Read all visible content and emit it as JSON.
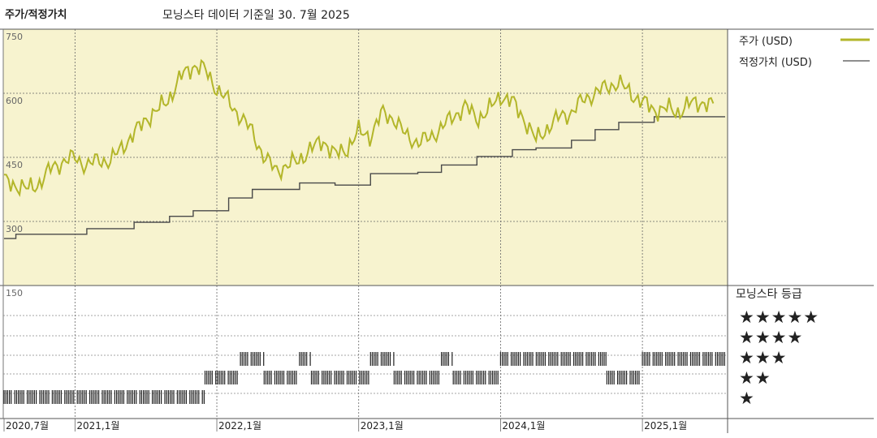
{
  "header": {
    "title": "주가/적정가치",
    "subtitle": "모닝스타 데이터 기준일 30. 7월 2025"
  },
  "legend": {
    "price_label": "주가 (USD)",
    "fair_value_label": "적정가치 (USD)",
    "price_color": "#b3b62a",
    "fair_value_color": "#4a4a4a"
  },
  "rating_panel": {
    "title": "모닝스타 등급",
    "levels": [
      "★★★★★",
      "★★★★",
      "★★★",
      "★★",
      "★"
    ]
  },
  "chart_data": {
    "type": "line",
    "title": "주가/적정가치",
    "x_ticks": [
      "2020,7월",
      "2021,1월",
      "2022,1월",
      "2023,1월",
      "2024,1월",
      "2025,1월"
    ],
    "y_ticks": [
      150,
      300,
      450,
      600,
      750
    ],
    "ylim": [
      150,
      750
    ],
    "xlim": [
      "2020-07",
      "2025-07"
    ],
    "grid": true,
    "legend_position": "right",
    "series": [
      {
        "name": "주가 (USD)",
        "color": "#b3b62a",
        "points": [
          [
            "2020-07",
            395
          ],
          [
            "2020-08",
            385
          ],
          [
            "2020-09",
            375
          ],
          [
            "2020-10",
            390
          ],
          [
            "2020-11",
            425
          ],
          [
            "2020-12",
            440
          ],
          [
            "2021-01",
            450
          ],
          [
            "2021-02",
            430
          ],
          [
            "2021-03",
            445
          ],
          [
            "2021-04",
            440
          ],
          [
            "2021-05",
            475
          ],
          [
            "2021-06",
            505
          ],
          [
            "2021-07",
            540
          ],
          [
            "2021-08",
            560
          ],
          [
            "2021-09",
            590
          ],
          [
            "2021-10",
            640
          ],
          [
            "2021-11",
            665
          ],
          [
            "2021-12",
            655
          ],
          [
            "2022-01",
            610
          ],
          [
            "2022-02",
            580
          ],
          [
            "2022-03",
            545
          ],
          [
            "2022-04",
            510
          ],
          [
            "2022-05",
            450
          ],
          [
            "2022-06",
            420
          ],
          [
            "2022-07",
            430
          ],
          [
            "2022-08",
            445
          ],
          [
            "2022-09",
            470
          ],
          [
            "2022-10",
            490
          ],
          [
            "2022-11",
            455
          ],
          [
            "2022-12",
            470
          ],
          [
            "2023-01",
            510
          ],
          [
            "2023-02",
            500
          ],
          [
            "2023-03",
            555
          ],
          [
            "2023-04",
            540
          ],
          [
            "2023-05",
            500
          ],
          [
            "2023-06",
            485
          ],
          [
            "2023-07",
            495
          ],
          [
            "2023-08",
            520
          ],
          [
            "2023-09",
            545
          ],
          [
            "2023-10",
            570
          ],
          [
            "2023-11",
            540
          ],
          [
            "2023-12",
            560
          ],
          [
            "2024-01",
            595
          ],
          [
            "2024-02",
            580
          ],
          [
            "2024-03",
            540
          ],
          [
            "2024-04",
            490
          ],
          [
            "2024-05",
            520
          ],
          [
            "2024-06",
            545
          ],
          [
            "2024-07",
            555
          ],
          [
            "2024-08",
            585
          ],
          [
            "2024-09",
            600
          ],
          [
            "2024-10",
            615
          ],
          [
            "2024-11",
            625
          ],
          [
            "2024-12",
            600
          ],
          [
            "2025-01",
            580
          ],
          [
            "2025-02",
            560
          ],
          [
            "2025-03",
            565
          ],
          [
            "2025-04",
            555
          ],
          [
            "2025-05",
            575
          ],
          [
            "2025-06",
            580
          ],
          [
            "2025-07",
            570
          ]
        ]
      },
      {
        "name": "적정가치 (USD)",
        "color": "#4a4a4a",
        "points": [
          [
            "2020-07",
            260
          ],
          [
            "2020-08",
            270
          ],
          [
            "2021-01",
            270
          ],
          [
            "2021-02",
            283
          ],
          [
            "2021-06",
            298
          ],
          [
            "2021-09",
            312
          ],
          [
            "2021-11",
            325
          ],
          [
            "2022-02",
            355
          ],
          [
            "2022-04",
            375
          ],
          [
            "2022-08",
            390
          ],
          [
            "2022-11",
            385
          ],
          [
            "2023-01",
            385
          ],
          [
            "2023-02",
            412
          ],
          [
            "2023-06",
            415
          ],
          [
            "2023-08",
            432
          ],
          [
            "2023-11",
            452
          ],
          [
            "2024-02",
            468
          ],
          [
            "2024-04",
            472
          ],
          [
            "2024-07",
            490
          ],
          [
            "2024-09",
            515
          ],
          [
            "2024-11",
            532
          ],
          [
            "2025-01",
            532
          ],
          [
            "2025-02",
            545
          ],
          [
            "2025-07",
            545
          ]
        ]
      }
    ],
    "star_rating": {
      "levels": [
        5,
        4,
        3,
        2,
        1
      ],
      "segments": [
        {
          "stars": 1,
          "from": "2020-07",
          "to": "2021-11"
        },
        {
          "stars": 2,
          "from": "2021-12",
          "to": "2022-02"
        },
        {
          "stars": 3,
          "from": "2022-03",
          "to": "2022-04"
        },
        {
          "stars": 2,
          "from": "2022-05",
          "to": "2022-07"
        },
        {
          "stars": 3,
          "from": "2022-08",
          "to": "2022-08"
        },
        {
          "stars": 2,
          "from": "2022-09",
          "to": "2023-01"
        },
        {
          "stars": 3,
          "from": "2023-02",
          "to": "2023-03"
        },
        {
          "stars": 2,
          "from": "2023-04",
          "to": "2023-07"
        },
        {
          "stars": 3,
          "from": "2023-08",
          "to": "2023-08"
        },
        {
          "stars": 2,
          "from": "2023-09",
          "to": "2023-12"
        },
        {
          "stars": 3,
          "from": "2024-01",
          "to": "2024-09"
        },
        {
          "stars": 2,
          "from": "2024-10",
          "to": "2024-12"
        },
        {
          "stars": 3,
          "from": "2025-01",
          "to": "2025-07"
        }
      ]
    }
  }
}
